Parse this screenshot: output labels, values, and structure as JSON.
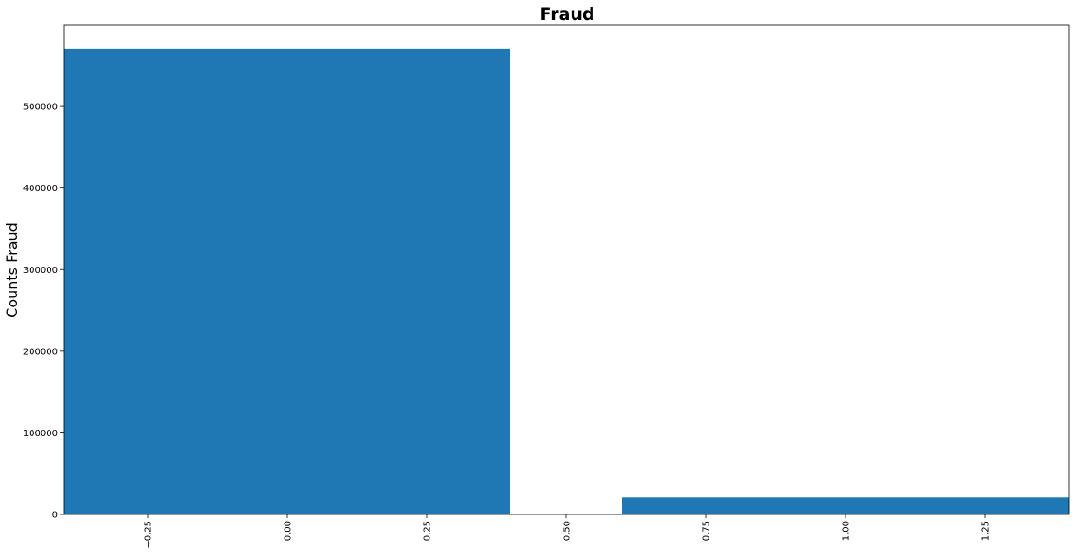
{
  "chart_data": {
    "type": "bar",
    "title": "Fraud",
    "xlabel": "",
    "ylabel": "Counts Fraud",
    "bars": [
      {
        "x": 0,
        "width": 0.8,
        "value": 570903
      },
      {
        "x": 1,
        "width": 0.8,
        "value": 20663
      }
    ],
    "xlim": [
      -0.4,
      1.4
    ],
    "ylim": [
      0,
      599448
    ],
    "xticks": [
      -0.25,
      0.0,
      0.25,
      0.5,
      0.75,
      1.0,
      1.25
    ],
    "xtick_labels": [
      "−0.25",
      "0.00",
      "0.25",
      "0.50",
      "0.75",
      "1.00",
      "1.25"
    ],
    "xtick_rotation": 90,
    "yticks": [
      0,
      100000,
      200000,
      300000,
      400000,
      500000
    ],
    "ytick_labels": [
      "0",
      "100000",
      "200000",
      "300000",
      "400000",
      "500000"
    ],
    "bar_color": "#1f77b4",
    "grid": false
  }
}
